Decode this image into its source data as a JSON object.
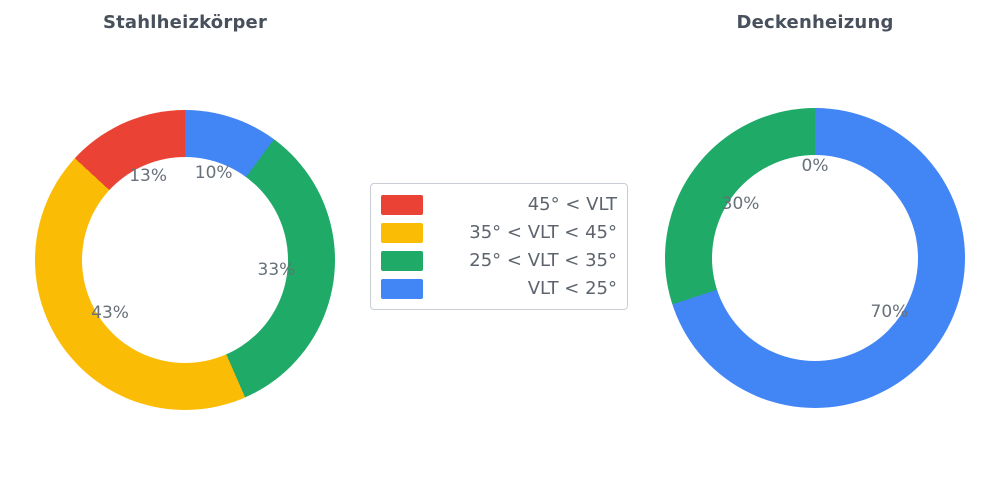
{
  "chart_data": [
    {
      "type": "pie",
      "title": "Stahlheizkörper",
      "hole": 0.69,
      "legend_position": "center-between-charts",
      "slices": [
        {
          "category": "VLT < 25°",
          "value": 10,
          "label": "10%",
          "color": "#4285F4"
        },
        {
          "category": "25° < VLT < 35°",
          "value": 33,
          "label": "33%",
          "color": "#1FAA67"
        },
        {
          "category": "35° < VLT < 45°",
          "value": 43,
          "label": "43%",
          "color": "#FBBC05"
        },
        {
          "category": "45° < VLT",
          "value": 13,
          "label": "13%",
          "color": "#EA4335"
        }
      ]
    },
    {
      "type": "pie",
      "title": "Deckenheizung",
      "hole": 0.69,
      "legend_position": "center-between-charts",
      "slices": [
        {
          "category": "VLT < 25°",
          "value": 70,
          "label": "70%",
          "color": "#4285F4"
        },
        {
          "category": "25° < VLT < 35°",
          "value": 30,
          "label": "30%",
          "color": "#1FAA67"
        },
        {
          "category": "45° < VLT",
          "value": 0,
          "label": "0%",
          "color": "#EA4335"
        }
      ]
    }
  ],
  "legend": {
    "items": [
      {
        "label": "45° < VLT",
        "color": "#EA4335"
      },
      {
        "label": "35° < VLT < 45°",
        "color": "#FBBC05"
      },
      {
        "label": "25° < VLT < 35°",
        "color": "#1FAA67"
      },
      {
        "label": "VLT < 25°",
        "color": "#4285F4"
      }
    ]
  }
}
